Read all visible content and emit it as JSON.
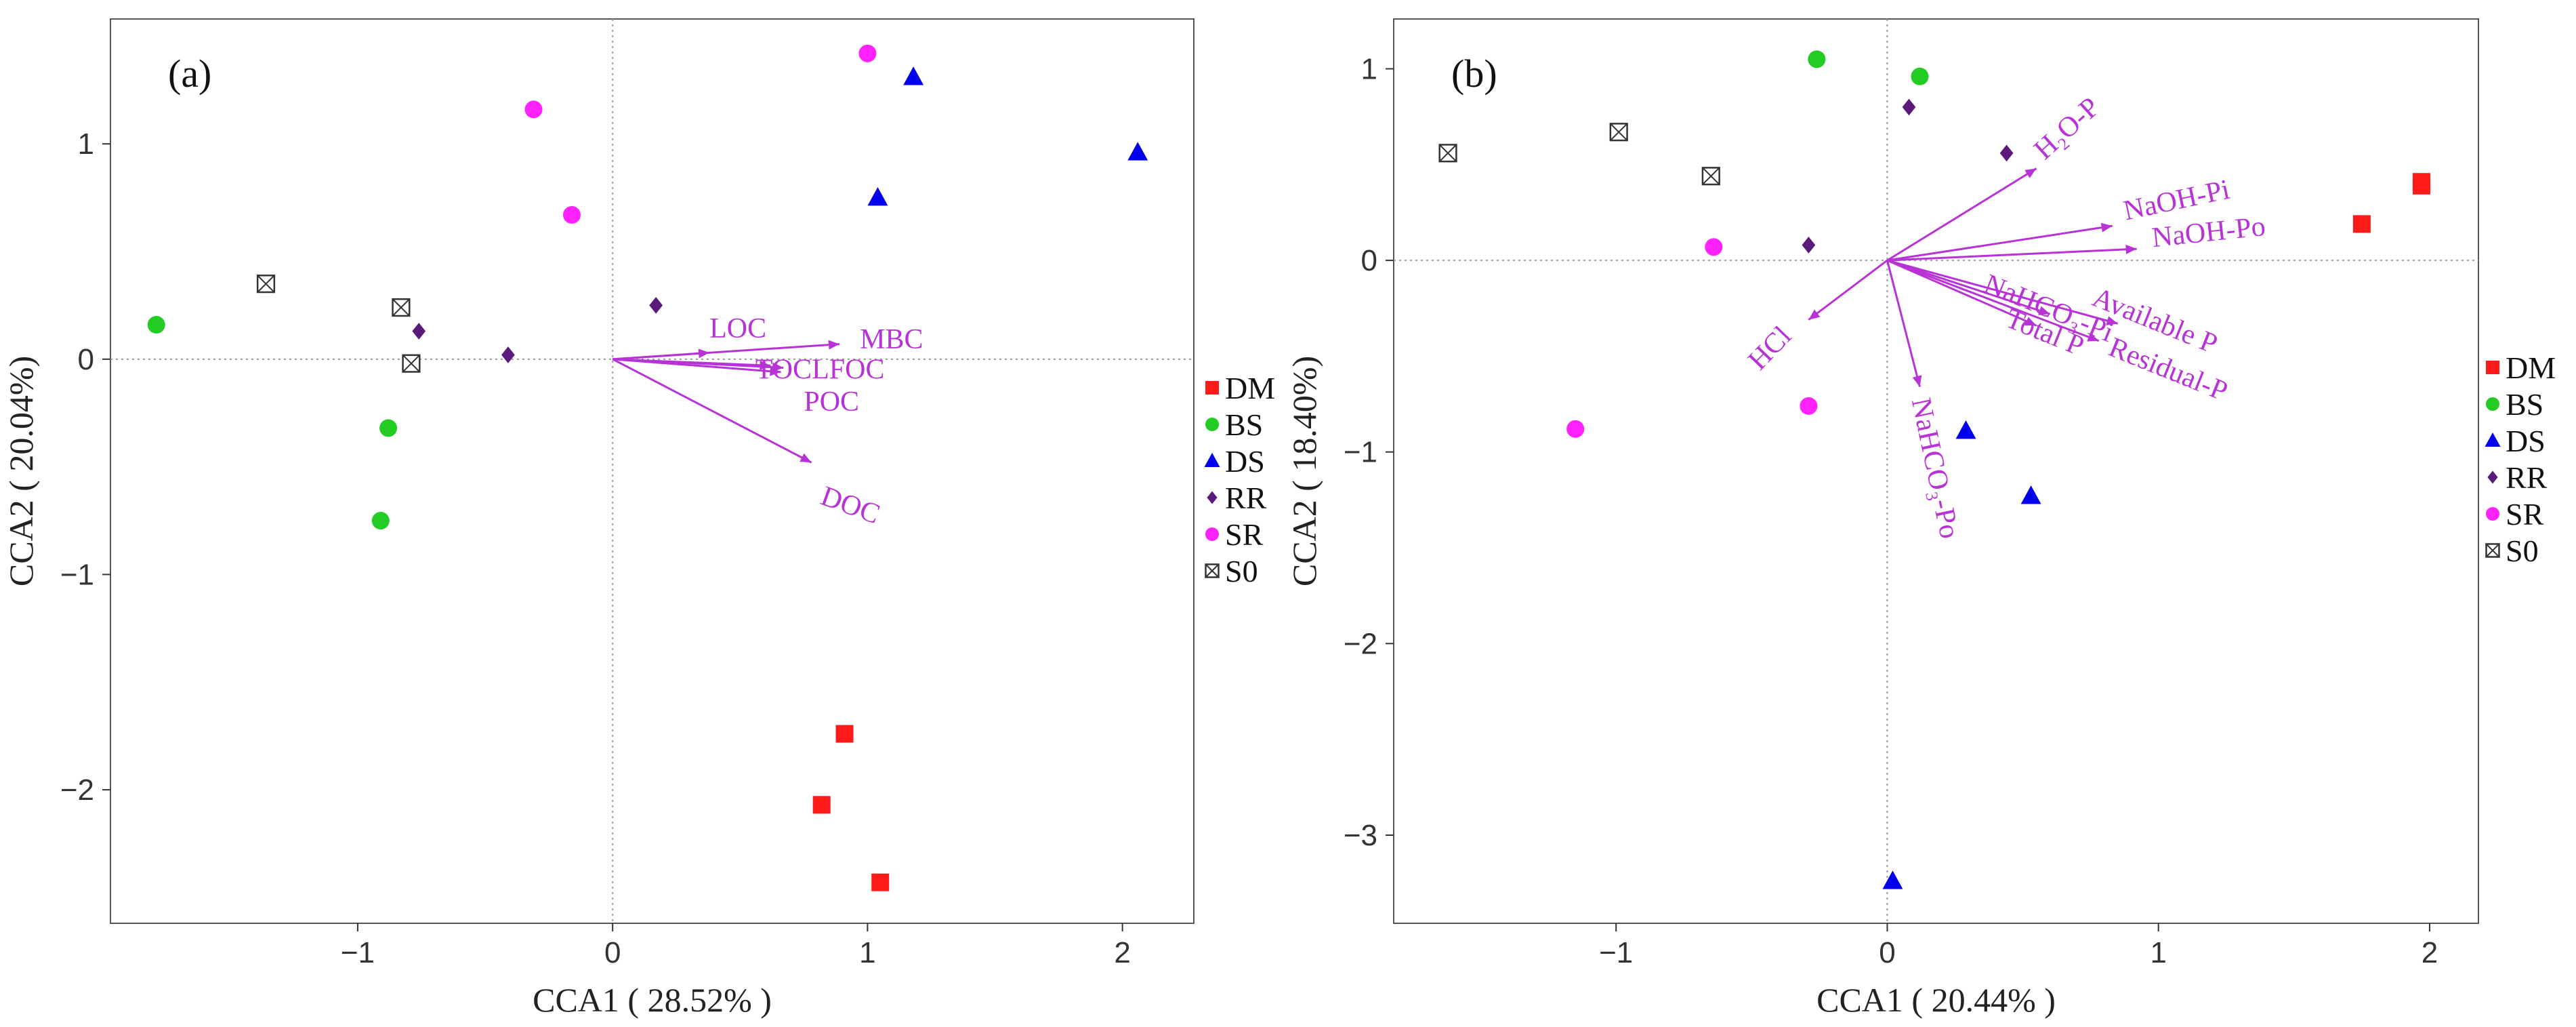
{
  "colors": {
    "DM": "#ff1a1a",
    "BS": "#22cc22",
    "DS": "#0000ee",
    "RR": "#5a1a7a",
    "SR": "#ff22ff",
    "S0": "#333333",
    "vector": "#b833d6"
  },
  "chart_data": [
    {
      "type": "scatter",
      "panel_label": "(a)",
      "xlabel": "CCA1 ( 28.52% )",
      "ylabel": "CCA2 ( 20.04%)",
      "xlim": [
        -1.97,
        2.28
      ],
      "ylim": [
        -2.62,
        1.58
      ],
      "xticks": [
        -1,
        0,
        1,
        2
      ],
      "yticks": [
        -2,
        -1,
        0,
        1
      ],
      "tick_labels_x": [
        "−1",
        "0",
        "1",
        "2"
      ],
      "tick_labels_y": [
        "−2",
        "−1",
        "0",
        "1"
      ],
      "legend": [
        "DM",
        "BS",
        "DS",
        "RR",
        "SR",
        "S0"
      ],
      "series": [
        {
          "name": "DM",
          "marker": "square",
          "points": [
            [
              0.91,
              -1.74
            ],
            [
              0.82,
              -2.07
            ],
            [
              1.05,
              -2.43
            ]
          ]
        },
        {
          "name": "BS",
          "marker": "circle",
          "points": [
            [
              -1.79,
              0.16
            ],
            [
              -0.88,
              -0.32
            ],
            [
              -0.91,
              -0.75
            ]
          ]
        },
        {
          "name": "DS",
          "marker": "triangle",
          "points": [
            [
              1.18,
              1.31
            ],
            [
              1.04,
              0.75
            ],
            [
              2.06,
              0.96
            ]
          ]
        },
        {
          "name": "RR",
          "marker": "diamond",
          "points": [
            [
              0.17,
              0.25
            ],
            [
              -0.76,
              0.13
            ],
            [
              -0.41,
              0.02
            ]
          ]
        },
        {
          "name": "SR",
          "marker": "circle",
          "points": [
            [
              1.0,
              1.42
            ],
            [
              -0.31,
              1.16
            ],
            [
              -0.16,
              0.67
            ]
          ]
        },
        {
          "name": "S0",
          "marker": "boxx",
          "points": [
            [
              -1.36,
              0.35
            ],
            [
              -0.83,
              0.24
            ],
            [
              -0.79,
              -0.02
            ]
          ]
        }
      ],
      "vectors": [
        {
          "label": "LOC",
          "x": 0.38,
          "y": 0.03
        },
        {
          "label": "MBC",
          "x": 0.89,
          "y": 0.07
        },
        {
          "label": "TOC",
          "x": 0.62,
          "y": -0.03
        },
        {
          "label": "LFOC",
          "x": 0.67,
          "y": -0.04
        },
        {
          "label": "POC",
          "x": 0.66,
          "y": -0.06
        },
        {
          "label": "DOC",
          "x": 0.78,
          "y": -0.48
        }
      ],
      "vector_labels": [
        {
          "text": "LOC",
          "x": 0.38,
          "y": 0.1,
          "angle": 0
        },
        {
          "text": "MBC",
          "x": 0.97,
          "y": 0.05,
          "angle": 0
        },
        {
          "text": "TOCLFOC",
          "x": 0.56,
          "y": -0.09,
          "angle": 0
        },
        {
          "text": "POC",
          "x": 0.75,
          "y": -0.24,
          "angle": 0
        },
        {
          "text": "DOC",
          "x": 0.81,
          "y": -0.67,
          "angle": 20
        }
      ]
    },
    {
      "type": "scatter",
      "panel_label": "(b)",
      "xlabel": "CCA1 ( 20.44% )",
      "ylabel": "CCA2 ( 18.40%)",
      "xlim": [
        -1.82,
        2.18
      ],
      "ylim": [
        -3.46,
        1.26
      ],
      "xticks": [
        -1,
        0,
        1,
        2
      ],
      "yticks": [
        -3,
        -2,
        -1,
        0,
        1
      ],
      "tick_labels_x": [
        "−1",
        "0",
        "1",
        "2"
      ],
      "tick_labels_y": [
        "−3",
        "−2",
        "−1",
        "0",
        "1"
      ],
      "legend": [
        "DM",
        "BS",
        "DS",
        "RR",
        "SR",
        "S0"
      ],
      "series": [
        {
          "name": "DM",
          "marker": "square",
          "points": [
            [
              1.97,
              0.39
            ],
            [
              1.97,
              0.41
            ],
            [
              1.75,
              0.19
            ]
          ]
        },
        {
          "name": "BS",
          "marker": "circle",
          "points": [
            [
              -0.26,
              1.05
            ],
            [
              0.12,
              0.96
            ]
          ]
        },
        {
          "name": "DS",
          "marker": "triangle",
          "points": [
            [
              0.29,
              -0.89
            ],
            [
              0.53,
              -1.23
            ],
            [
              0.02,
              -3.24
            ]
          ]
        },
        {
          "name": "RR",
          "marker": "diamond",
          "points": [
            [
              0.08,
              0.8
            ],
            [
              0.44,
              0.56
            ],
            [
              -0.29,
              0.08
            ]
          ]
        },
        {
          "name": "SR",
          "marker": "circle",
          "points": [
            [
              -0.64,
              0.07
            ],
            [
              -0.29,
              -0.76
            ],
            [
              -1.15,
              -0.88
            ]
          ]
        },
        {
          "name": "S0",
          "marker": "boxx",
          "points": [
            [
              -1.62,
              0.56
            ],
            [
              -0.99,
              0.67
            ],
            [
              -0.65,
              0.44
            ]
          ]
        }
      ],
      "vectors": [
        {
          "label": "H₂O-P",
          "x": 0.55,
          "y": 0.48
        },
        {
          "label": "NaOH-Pi",
          "x": 0.83,
          "y": 0.18
        },
        {
          "label": "NaOH-Po",
          "x": 0.92,
          "y": 0.06
        },
        {
          "label": "Available P",
          "x": 0.85,
          "y": -0.33
        },
        {
          "label": "Residual-P",
          "x": 0.78,
          "y": -0.42
        },
        {
          "label": "NaHCO₃-Pi",
          "x": 0.6,
          "y": -0.28
        },
        {
          "label": "Total P",
          "x": 0.55,
          "y": -0.34
        },
        {
          "label": "HCl",
          "x": -0.29,
          "y": -0.31
        },
        {
          "label": "NaHCO₃-Po",
          "x": 0.12,
          "y": -0.66
        }
      ],
      "vector_labels": [
        {
          "text": "H₂O-P",
          "x": 0.58,
          "y": 0.52,
          "angle": -42
        },
        {
          "text": "NaOH-Pi",
          "x": 0.88,
          "y": 0.21,
          "angle": -12
        },
        {
          "text": "NaOH-Po",
          "x": 0.98,
          "y": 0.07,
          "angle": -6
        },
        {
          "text": "Available P",
          "x": 0.75,
          "y": -0.23,
          "angle": 22
        },
        {
          "text": "Residual-P",
          "x": 0.81,
          "y": -0.49,
          "angle": 22
        },
        {
          "text": "NaHCO₃-Pi",
          "x": 0.35,
          "y": -0.16,
          "angle": 22
        },
        {
          "text": "Total P",
          "x": 0.43,
          "y": -0.34,
          "angle": 22
        },
        {
          "text": "HCl",
          "x": -0.47,
          "y": -0.58,
          "angle": -46
        },
        {
          "text": "NaHCO₃-Po",
          "x": 0.09,
          "y": -0.73,
          "angle": 78
        }
      ]
    }
  ]
}
